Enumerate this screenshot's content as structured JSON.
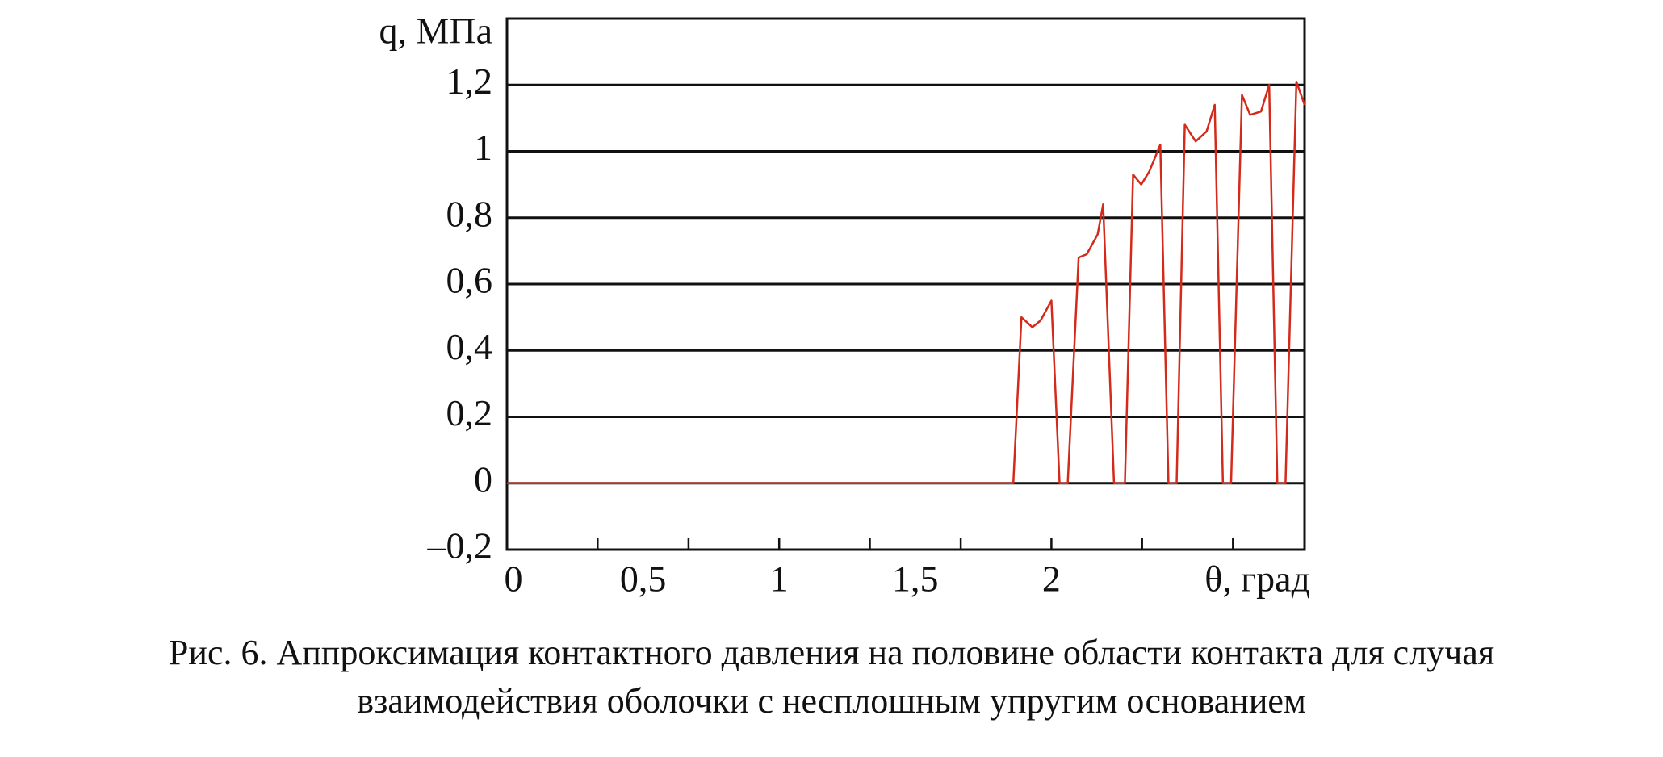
{
  "chart_data": {
    "type": "line",
    "ylabel": "q, МПа",
    "xlabel": "θ, град",
    "caption": [
      "Рис. 6. Аппроксимация контактного давления на половине области контакта для случая",
      "взаимодействия оболочки с несплошным упругим основанием"
    ],
    "xlim": [
      0,
      2.93
    ],
    "ylim": [
      -0.2,
      1.4
    ],
    "xticks": [
      0,
      {
        "value": 0.5,
        "label": "0,5"
      },
      1,
      {
        "value": 1.5,
        "label": "1,5"
      },
      2
    ],
    "xminorticks": [
      0.333,
      0.667,
      1.0,
      1.333,
      1.667,
      2.0,
      2.333,
      2.667
    ],
    "yticks": [
      {
        "value": -0.2,
        "label": "–0,2"
      },
      0,
      {
        "value": 0.2,
        "label": "0,2"
      },
      {
        "value": 0.4,
        "label": "0,4"
      },
      {
        "value": 0.6,
        "label": "0,6"
      },
      {
        "value": 0.8,
        "label": "0,8"
      },
      1,
      {
        "value": 1.2,
        "label": "1,2"
      }
    ],
    "grid": true,
    "series": [
      {
        "color": "#d42a1a",
        "x": [
          0,
          0.5,
          1,
          1.5,
          1.86,
          1.89,
          1.93,
          1.96,
          2.0,
          2.03,
          2.06,
          2.1,
          2.13,
          2.17,
          2.19,
          2.23,
          2.27,
          2.3,
          2.33,
          2.36,
          2.4,
          2.43,
          2.46,
          2.49,
          2.53,
          2.57,
          2.6,
          2.63,
          2.66,
          2.7,
          2.73,
          2.77,
          2.8,
          2.83,
          2.86,
          2.9,
          2.93
        ],
        "values": [
          0,
          0,
          0,
          0,
          0,
          0.5,
          0.47,
          0.49,
          0.55,
          0,
          0,
          0.68,
          0.69,
          0.75,
          0.84,
          0,
          0,
          0.93,
          0.9,
          0.94,
          1.02,
          0,
          0,
          1.08,
          1.03,
          1.06,
          1.14,
          0,
          0,
          1.17,
          1.11,
          1.12,
          1.2,
          0,
          0,
          1.21,
          1.14
        ]
      }
    ]
  }
}
